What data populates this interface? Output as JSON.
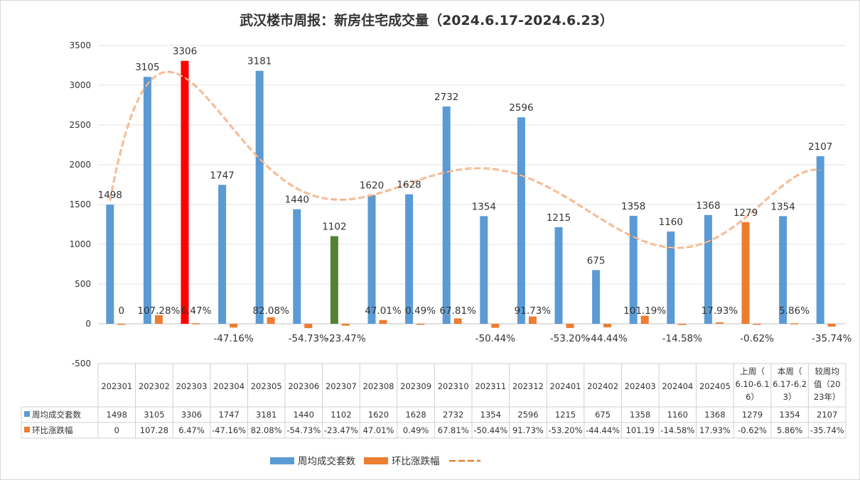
{
  "chart_data": {
    "type": "bar",
    "title": "武汉楼市周报：新房住宅成交量（2024.6.17-2024.6.23）",
    "categories": [
      "202301",
      "202302",
      "202303",
      "202304",
      "202305",
      "202306",
      "202307",
      "202308",
      "202309",
      "202310",
      "202311",
      "202312",
      "202401",
      "202402",
      "202403",
      "202404",
      "202405",
      "上周（6.10-6.16）",
      "本周（6.17-6.23）",
      "较周均值（2023年）"
    ],
    "category_display": [
      [
        "202301"
      ],
      [
        "202302"
      ],
      [
        "202303"
      ],
      [
        "202304"
      ],
      [
        "202305"
      ],
      [
        "202306"
      ],
      [
        "202307"
      ],
      [
        "202308"
      ],
      [
        "202309"
      ],
      [
        "202310"
      ],
      [
        "202311"
      ],
      [
        "202312"
      ],
      [
        "202401"
      ],
      [
        "202402"
      ],
      [
        "202403"
      ],
      [
        "202404"
      ],
      [
        "202405"
      ],
      [
        "上周（",
        "6.10-6.1",
        "6）"
      ],
      [
        "本周（",
        "6.17-6.2",
        "3）"
      ],
      [
        "较周均",
        "值（20",
        "23年）"
      ]
    ],
    "series": [
      {
        "name": "周均成交套数",
        "color": "#5B9BD5",
        "values": [
          1498,
          3105,
          3306,
          1747,
          3181,
          1440,
          1102,
          1620,
          1628,
          2732,
          1354,
          2596,
          1215,
          675,
          1358,
          1160,
          1368,
          1279,
          1354,
          2107
        ],
        "labels": [
          "1498",
          "3105",
          "3306",
          "1747",
          "3181",
          "1440",
          "1102",
          "1620",
          "1628",
          "2732",
          "1354",
          "2596",
          "1215",
          "675",
          "1358",
          "1160",
          "1368",
          "1279",
          "1354",
          "2107"
        ],
        "table_labels": [
          "1498",
          "3105",
          "3306",
          "1747",
          "3181",
          "1440",
          "1102",
          "1620",
          "1628",
          "2732",
          "1354",
          "2596",
          "1215",
          "675",
          "1358",
          "1160",
          "1368",
          "1279",
          "1354",
          "2107"
        ]
      },
      {
        "name": "环比涨跌幅",
        "color": "#ED7D31",
        "values": [
          0,
          107.28,
          6.47,
          -47.16,
          82.08,
          -54.73,
          -23.47,
          47.01,
          0.49,
          67.81,
          -50.44,
          91.73,
          -53.2,
          -44.44,
          101.19,
          -14.58,
          17.93,
          -0.62,
          5.86,
          -35.74
        ],
        "labels": [
          "0",
          "107.28%",
          "6.47%",
          "-47.16%",
          "82.08%",
          "-54.73%",
          "-23.47%",
          "47.01%",
          "0.49%",
          "67.81%",
          "-50.44%",
          "91.73%",
          "-53.20%",
          "-44.44%",
          "101.19%",
          "-14.58%",
          "17.93%",
          "-0.62%",
          "5.86%",
          "-35.74%"
        ],
        "table_labels": [
          "0",
          "107.28",
          "6.47%",
          "-47.16%",
          "82.08%",
          "-54.73%",
          "-23.47%",
          "47.01%",
          "0.49%",
          "67.81%",
          "-50.44%",
          "91.73%",
          "-53.20%",
          "-44.44%",
          "101.19",
          "-14.58%",
          "17.93%",
          "-0.62%",
          "5.86%",
          "-35.74%"
        ]
      }
    ],
    "highlight_colors": {
      "202303": "#FF0000",
      "202307": "#548235",
      "上周（6.10-6.16）": "#ED7D31"
    },
    "trendline": {
      "type": "polynomial",
      "color": "#ED7D31",
      "style": "dashed"
    },
    "yticks": [
      -500,
      0,
      500,
      1000,
      1500,
      2000,
      2500,
      3000,
      3500
    ],
    "ylim": [
      -500,
      3500
    ],
    "grid": true,
    "data_table": true,
    "legend_position": "bottom"
  }
}
